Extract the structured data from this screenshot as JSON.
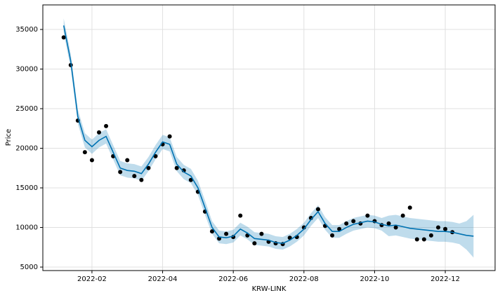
{
  "chart_data": {
    "type": "forecast",
    "xlabel": "KRW-LINK",
    "ylabel": "Price",
    "xlim": [
      0.61,
      13.41
    ],
    "ylim": [
      4560,
      38100
    ],
    "xticks": [
      {
        "value": 2,
        "label": "2022-02"
      },
      {
        "value": 4,
        "label": "2022-04"
      },
      {
        "value": 6,
        "label": "2022-06"
      },
      {
        "value": 8,
        "label": "2022-08"
      },
      {
        "value": 10,
        "label": "2022-10"
      },
      {
        "value": 12,
        "label": "2022-12"
      }
    ],
    "yticks": [
      5000,
      10000,
      15000,
      20000,
      25000,
      30000,
      35000
    ],
    "grid": true,
    "observed_color": "#000000",
    "forecast_color": "#0072B2",
    "band_color": "#0072B2",
    "x": [
      1.2,
      1.4,
      1.6,
      1.8,
      2.0,
      2.2,
      2.4,
      2.6,
      2.8,
      3.0,
      3.2,
      3.4,
      3.6,
      3.8,
      4.0,
      4.2,
      4.4,
      4.6,
      4.8,
      5.0,
      5.2,
      5.4,
      5.6,
      5.8,
      6.0,
      6.2,
      6.4,
      6.6,
      6.8,
      7.0,
      7.2,
      7.4,
      7.6,
      7.8,
      8.0,
      8.2,
      8.4,
      8.6,
      8.8,
      9.0,
      9.2,
      9.4,
      9.6,
      9.8,
      10.0,
      10.2,
      10.4,
      10.6,
      10.8,
      11.0,
      11.2,
      11.4,
      11.6,
      11.8,
      12.0,
      12.2,
      12.4,
      12.6,
      12.8
    ],
    "observed": [
      34000,
      30500,
      23500,
      19500,
      18500,
      22000,
      22800,
      19000,
      17000,
      18500,
      16500,
      16000,
      17500,
      19000,
      20500,
      21500,
      17500,
      17200,
      16000,
      14500,
      12000,
      9500,
      8600,
      9200,
      8800,
      11500,
      9000,
      8000,
      9200,
      8200,
      8000,
      7900,
      8700,
      8800,
      10000,
      11200,
      12300,
      10200,
      9000,
      9800,
      10500,
      10800,
      10500,
      11500,
      10800,
      10300,
      10500,
      10000,
      11500,
      12500,
      8500,
      8500,
      9000,
      10000,
      9800,
      9400,
      null,
      null,
      null
    ],
    "yhat": [
      35500,
      31000,
      24000,
      21000,
      20200,
      21000,
      21500,
      19500,
      17500,
      17200,
      17100,
      16800,
      18000,
      19500,
      20800,
      20500,
      18000,
      17000,
      16500,
      15000,
      12500,
      10000,
      8800,
      8700,
      8900,
      9800,
      9300,
      8600,
      8500,
      8400,
      8100,
      8000,
      8400,
      9000,
      9800,
      11000,
      12000,
      10500,
      9500,
      9500,
      10000,
      10400,
      10600,
      10800,
      10700,
      10400,
      10200,
      10300,
      10100,
      9900,
      9800,
      9700,
      9600,
      9500,
      9500,
      9400,
      9200,
      9000,
      8900
    ],
    "yhat_lower": [
      34600,
      30100,
      23100,
      20100,
      19300,
      20100,
      20600,
      18600,
      16600,
      16300,
      16200,
      15900,
      17100,
      18600,
      19900,
      19600,
      17100,
      16100,
      15600,
      14100,
      11600,
      9200,
      8000,
      7900,
      8100,
      9000,
      8500,
      7800,
      7700,
      7600,
      7300,
      7200,
      7600,
      8200,
      9000,
      10200,
      11200,
      9700,
      8700,
      8700,
      9200,
      9600,
      9800,
      10000,
      9900,
      9600,
      8900,
      9000,
      8800,
      8600,
      8500,
      8400,
      8300,
      8200,
      8200,
      8100,
      7900,
      7200,
      6200
    ],
    "yhat_upper": [
      36400,
      31900,
      24900,
      21900,
      21100,
      21900,
      22400,
      20400,
      18400,
      18100,
      18000,
      17700,
      18900,
      20400,
      21700,
      21400,
      18900,
      17900,
      17400,
      15900,
      13400,
      10800,
      9600,
      9500,
      9700,
      10600,
      10100,
      9400,
      9300,
      9200,
      8900,
      8800,
      9200,
      9800,
      10600,
      11800,
      12800,
      11300,
      10300,
      10300,
      10800,
      11200,
      11400,
      11600,
      11500,
      11200,
      11500,
      11600,
      11400,
      11200,
      11100,
      11000,
      10900,
      10800,
      10800,
      10700,
      10500,
      10800,
      11600
    ]
  }
}
